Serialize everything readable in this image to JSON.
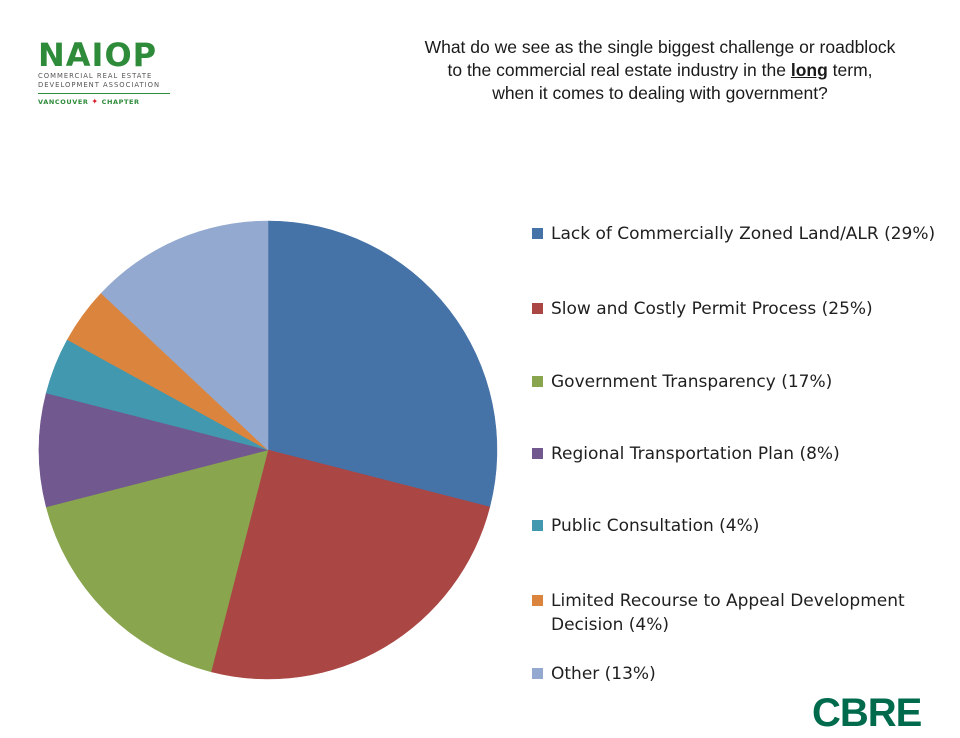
{
  "logo": {
    "name": "NAIOP",
    "sub_line1": "COMMERCIAL REAL ESTATE",
    "sub_line2": "DEVELOPMENT ASSOCIATION",
    "chapter_left": "VANCOUVER",
    "chapter_right": "CHAPTER"
  },
  "question": {
    "line1": "What do we see as the single biggest challenge or roadblock",
    "line2_before": "to the commercial real estate industry in the ",
    "line2_emph": "long",
    "line2_after": " term,",
    "line3": "when it comes to dealing with government?"
  },
  "chart_data": {
    "type": "pie",
    "title": "",
    "legend_position": "right",
    "start_angle": "12 o'clock, clockwise",
    "series": [
      {
        "name": "Lack of Commercially Zoned Land/ALR (29%)",
        "value": 29,
        "color": "#4572a7"
      },
      {
        "name": "Slow and Costly Permit Process (25%)",
        "value": 25,
        "color": "#aa4643"
      },
      {
        "name": "Government Transparency (17%)",
        "value": 17,
        "color": "#89a54e"
      },
      {
        "name": "Regional Transportation Plan (8%)",
        "value": 8,
        "color": "#71588f"
      },
      {
        "name": "Public Consultation (4%)",
        "value": 4,
        "color": "#4198af"
      },
      {
        "name": "Limited Recourse to Appeal Development Decision (4%)",
        "value": 4,
        "color": "#db843d"
      },
      {
        "name": "Other (13%)",
        "value": 13,
        "color": "#93a9cf"
      }
    ]
  },
  "brand": {
    "cbre": "CBRE",
    "cbre_color": "#006a4d",
    "naiop_color": "#2e8b3a"
  }
}
